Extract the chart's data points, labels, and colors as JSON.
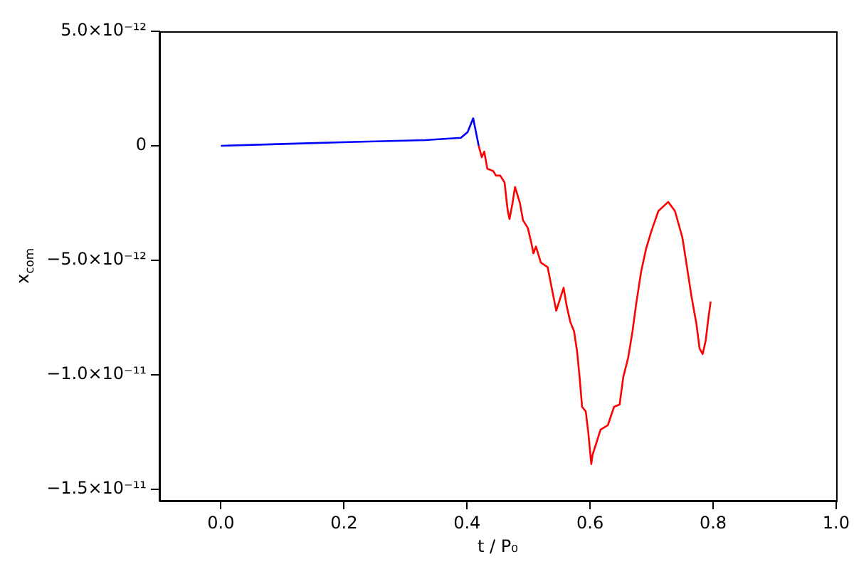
{
  "chart_data": {
    "type": "line",
    "xlabel": "t / P₀",
    "ylabel": "x$_{com}$",
    "xlim": [
      -0.1,
      1.0
    ],
    "xticks": [
      {
        "value": 0,
        "label": "0.0"
      },
      {
        "value": 0.2,
        "label": "0.2"
      },
      {
        "value": 0.4,
        "label": "0.4"
      },
      {
        "value": 0.6,
        "label": "0.6"
      },
      {
        "value": 0.8,
        "label": "0.8"
      },
      {
        "value": 1.0,
        "label": "1.0"
      }
    ],
    "ylim": [
      -1.55e-11,
      5e-12
    ],
    "yticks": [
      {
        "value": 5e-12,
        "label": "5.0×10⁻¹²"
      },
      {
        "value": 0,
        "label": "0"
      },
      {
        "value": -5e-12,
        "label": "−5.0×10⁻¹²"
      },
      {
        "value": -1e-11,
        "label": "−1.0×10⁻¹¹"
      },
      {
        "value": -1.5e-11,
        "label": "−1.5×10⁻¹¹"
      }
    ],
    "grid": false,
    "legend": false,
    "marker": "none",
    "line_style": "solid",
    "series": [
      {
        "color": "#0000ff",
        "x": [
          0,
          0.102,
          0.217,
          0.332,
          0.39,
          0.401,
          0.41,
          0.419
        ],
        "values": [
          0,
          8e-14,
          1.7e-13,
          2.5e-13,
          3.5e-13,
          6e-13,
          1.2e-12,
          0
        ]
      },
      {
        "color": "#ff0000",
        "x": [
          0.419,
          0.424,
          0.428,
          0.433,
          0.4425,
          0.447,
          0.454,
          0.461,
          0.466,
          0.469,
          0.474,
          0.478,
          0.486,
          0.491,
          0.499,
          0.505,
          0.508,
          0.512,
          0.52,
          0.531,
          0.545,
          0.557,
          0.562,
          0.568,
          0.574,
          0.579,
          0.583,
          0.587,
          0.593,
          0.597,
          0.602,
          0.604,
          0.61,
          0.617,
          0.629,
          0.639,
          0.648,
          0.654,
          0.662,
          0.669,
          0.675,
          0.683,
          0.691,
          0.7,
          0.711,
          0.727,
          0.738,
          0.75,
          0.757,
          0.765,
          0.773,
          0.778,
          0.783,
          0.788,
          0.792,
          0.796
        ],
        "values": [
          0,
          -5e-13,
          -2.5e-13,
          -1e-12,
          -1.1e-12,
          -1.3e-12,
          -1.3e-12,
          -1.6e-12,
          -2.8e-12,
          -3.2e-12,
          -2.5e-12,
          -1.8e-12,
          -2.5e-12,
          -3.25e-12,
          -3.6e-12,
          -4.3e-12,
          -4.7e-12,
          -4.4e-12,
          -5.1e-12,
          -5.3e-12,
          -7.2e-12,
          -6.2e-12,
          -7e-12,
          -7.7e-12,
          -8.1e-12,
          -9e-12,
          -1.01e-11,
          -1.14e-11,
          -1.16e-11,
          -1.25e-11,
          -1.39e-11,
          -1.35e-11,
          -1.3e-11,
          -1.24e-11,
          -1.22e-11,
          -1.14e-11,
          -1.13e-11,
          -1.01e-11,
          -9.25e-12,
          -8.1e-12,
          -6.9e-12,
          -5.5e-12,
          -4.5e-12,
          -3.7e-12,
          -2.85e-12,
          -2.45e-12,
          -2.85e-12,
          -4e-12,
          -5.2e-12,
          -6.6e-12,
          -7.8e-12,
          -8.85e-12,
          -9.1e-12,
          -8.5e-12,
          -7.6e-12,
          -6.8e-12
        ]
      }
    ]
  }
}
